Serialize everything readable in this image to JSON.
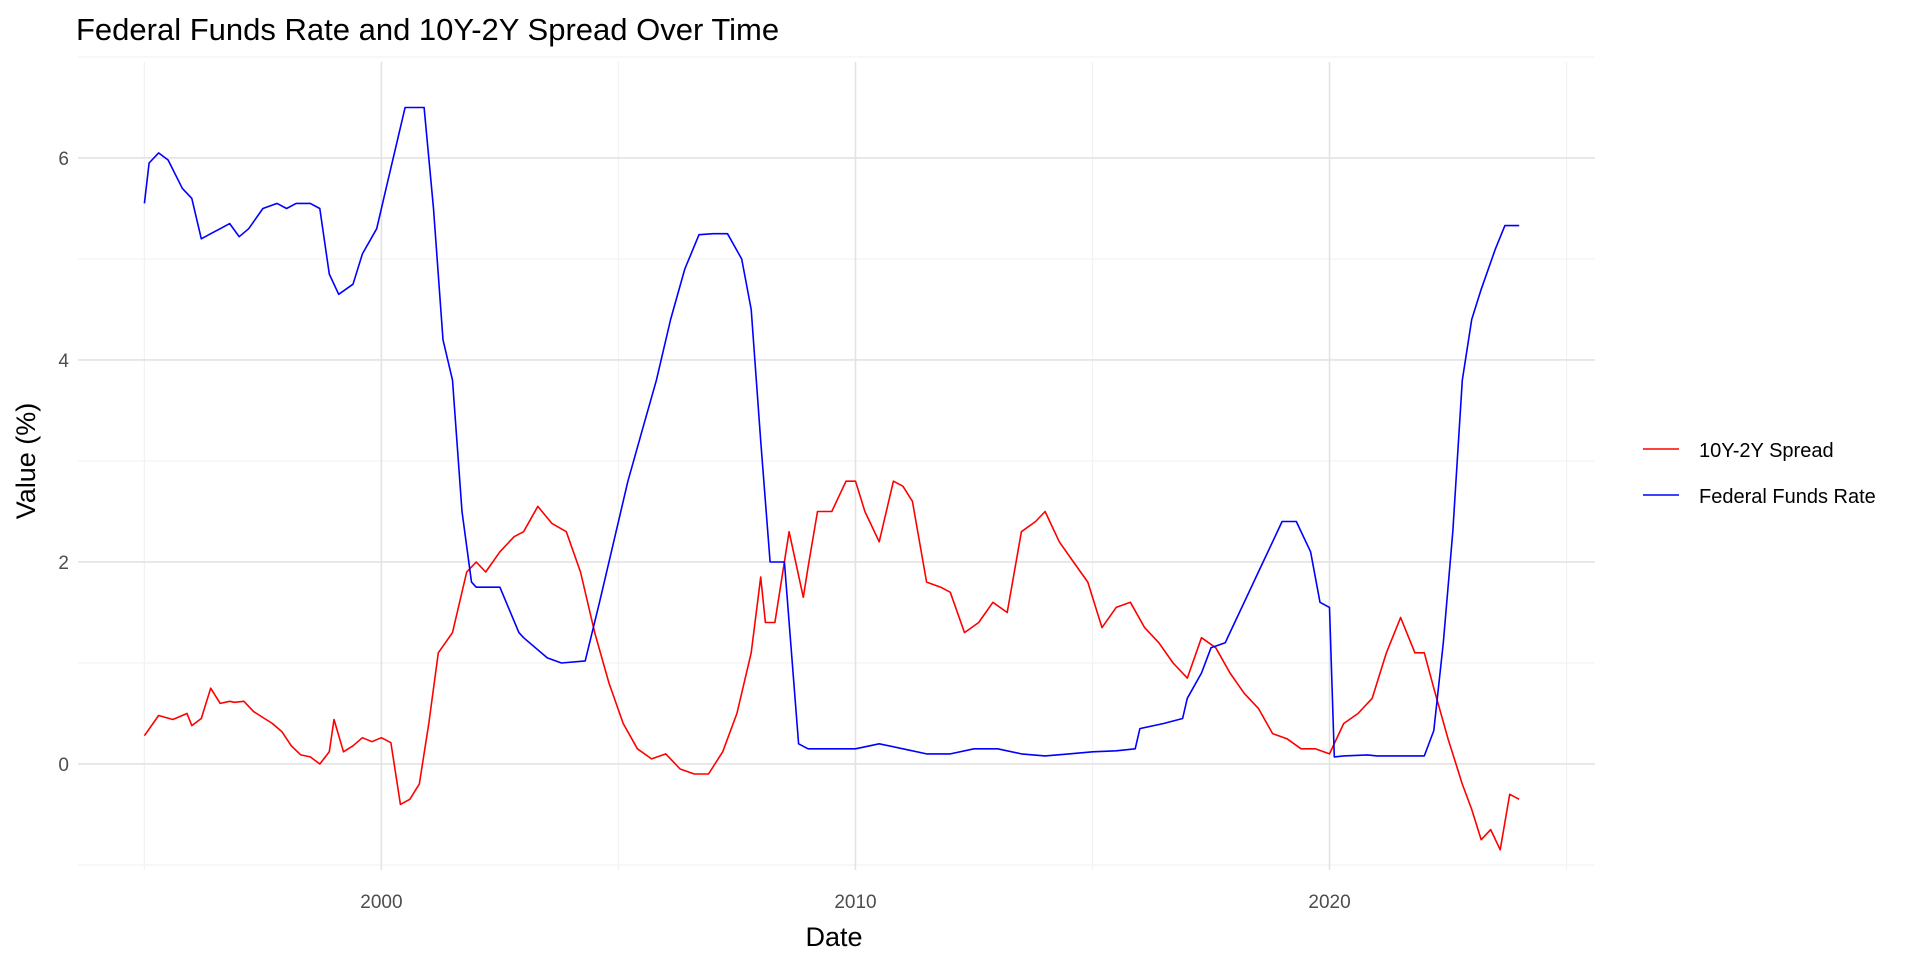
{
  "chart_data": {
    "type": "line",
    "title": "Federal Funds Rate and 10Y-2Y Spread Over Time",
    "xlabel": "Date",
    "ylabel": "Value (%)",
    "xlim": [
      1993.6,
      2025.6
    ],
    "ylim": [
      -1.05,
      6.95
    ],
    "x_ticks": [
      2000,
      2010,
      2020
    ],
    "y_ticks": [
      0,
      2,
      4,
      6
    ],
    "grid": true,
    "legend_position": "right",
    "series": [
      {
        "name": "10Y-2Y Spread",
        "color": "#FF0000",
        "x": [
          1995.0,
          1995.3,
          1995.6,
          1995.9,
          1996.0,
          1996.2,
          1996.4,
          1996.6,
          1996.8,
          1996.9,
          1997.1,
          1997.3,
          1997.5,
          1997.7,
          1997.9,
          1998.1,
          1998.3,
          1998.5,
          1998.7,
          1998.9,
          1999.0,
          1999.2,
          1999.4,
          1999.6,
          1999.8,
          2000.0,
          2000.2,
          2000.4,
          2000.6,
          2000.8,
          2001.0,
          2001.2,
          2001.5,
          2001.8,
          2002.0,
          2002.2,
          2002.5,
          2002.8,
          2003.0,
          2003.3,
          2003.6,
          2003.9,
          2004.2,
          2004.5,
          2004.8,
          2005.1,
          2005.4,
          2005.7,
          2006.0,
          2006.3,
          2006.6,
          2006.9,
          2007.2,
          2007.5,
          2007.8,
          2008.0,
          2008.1,
          2008.3,
          2008.6,
          2008.9,
          2009.0,
          2009.2,
          2009.5,
          2009.8,
          2010.0,
          2010.2,
          2010.5,
          2010.8,
          2011.0,
          2011.2,
          2011.5,
          2011.8,
          2012.0,
          2012.3,
          2012.6,
          2012.9,
          2013.2,
          2013.5,
          2013.8,
          2014.0,
          2014.3,
          2014.6,
          2014.9,
          2015.2,
          2015.5,
          2015.8,
          2016.1,
          2016.4,
          2016.7,
          2017.0,
          2017.3,
          2017.6,
          2017.9,
          2018.2,
          2018.5,
          2018.8,
          2019.1,
          2019.4,
          2019.7,
          2020.0,
          2020.3,
          2020.6,
          2020.9,
          2021.2,
          2021.5,
          2021.8,
          2022.0,
          2022.2,
          2022.5,
          2022.8,
          2023.0,
          2023.2,
          2023.4,
          2023.6,
          2023.8,
          2024.0
        ],
        "y": [
          0.28,
          0.48,
          0.44,
          0.5,
          0.38,
          0.45,
          0.75,
          0.6,
          0.62,
          0.61,
          0.62,
          0.52,
          0.46,
          0.4,
          0.32,
          0.18,
          0.09,
          0.07,
          0.0,
          0.12,
          0.44,
          0.12,
          0.18,
          0.26,
          0.22,
          0.26,
          0.21,
          -0.4,
          -0.35,
          -0.2,
          0.4,
          1.1,
          1.3,
          1.9,
          2.0,
          1.9,
          2.1,
          2.25,
          2.3,
          2.55,
          2.38,
          2.3,
          1.9,
          1.3,
          0.8,
          0.4,
          0.15,
          0.05,
          0.1,
          -0.05,
          -0.1,
          -0.1,
          0.12,
          0.5,
          1.1,
          1.85,
          1.4,
          1.4,
          2.3,
          1.65,
          1.95,
          2.5,
          2.5,
          2.8,
          2.8,
          2.5,
          2.2,
          2.8,
          2.75,
          2.6,
          1.8,
          1.75,
          1.7,
          1.3,
          1.4,
          1.6,
          1.5,
          2.3,
          2.4,
          2.5,
          2.2,
          2.0,
          1.8,
          1.35,
          1.55,
          1.6,
          1.35,
          1.2,
          1.0,
          0.85,
          1.25,
          1.15,
          0.9,
          0.7,
          0.55,
          0.3,
          0.25,
          0.15,
          0.15,
          0.1,
          0.4,
          0.5,
          0.65,
          1.1,
          1.45,
          1.1,
          1.1,
          0.75,
          0.25,
          -0.2,
          -0.45,
          -0.75,
          -0.65,
          -0.85,
          -0.3,
          -0.35
        ]
      },
      {
        "name": "Federal Funds Rate",
        "color": "#0000FF",
        "x": [
          1995.0,
          1995.1,
          1995.3,
          1995.5,
          1995.8,
          1996.0,
          1996.2,
          1996.4,
          1996.6,
          1996.8,
          1997.0,
          1997.2,
          1997.5,
          1997.8,
          1998.0,
          1998.2,
          1998.5,
          1998.7,
          1998.9,
          1999.1,
          1999.4,
          1999.6,
          1999.9,
          2000.1,
          2000.3,
          2000.5,
          2000.7,
          2000.9,
          2001.1,
          2001.3,
          2001.5,
          2001.7,
          2001.9,
          2002.0,
          2002.5,
          2002.9,
          2003.0,
          2003.5,
          2003.8,
          2004.3,
          2004.6,
          2004.9,
          2005.2,
          2005.5,
          2005.8,
          2006.1,
          2006.4,
          2006.7,
          2007.0,
          2007.3,
          2007.6,
          2007.8,
          2008.0,
          2008.2,
          2008.5,
          2008.8,
          2009.0,
          2009.5,
          2010.0,
          2010.5,
          2011.0,
          2011.5,
          2012.0,
          2012.5,
          2013.0,
          2013.5,
          2014.0,
          2014.5,
          2015.0,
          2015.5,
          2015.9,
          2016.0,
          2016.5,
          2016.9,
          2017.0,
          2017.3,
          2017.5,
          2017.8,
          2018.0,
          2018.3,
          2018.5,
          2018.8,
          2019.0,
          2019.3,
          2019.6,
          2019.8,
          2020.0,
          2020.1,
          2020.3,
          2020.8,
          2021.0,
          2021.5,
          2022.0,
          2022.2,
          2022.4,
          2022.6,
          2022.8,
          2023.0,
          2023.2,
          2023.5,
          2023.7,
          2024.0
        ],
        "y": [
          5.55,
          5.95,
          6.05,
          5.98,
          5.7,
          5.6,
          5.2,
          5.25,
          5.3,
          5.35,
          5.22,
          5.3,
          5.5,
          5.55,
          5.5,
          5.55,
          5.55,
          5.5,
          4.85,
          4.65,
          4.75,
          5.05,
          5.3,
          5.7,
          6.1,
          6.5,
          6.5,
          6.5,
          5.5,
          4.2,
          3.8,
          2.5,
          1.8,
          1.75,
          1.75,
          1.3,
          1.25,
          1.05,
          1.0,
          1.02,
          1.6,
          2.2,
          2.8,
          3.3,
          3.8,
          4.4,
          4.9,
          5.24,
          5.25,
          5.25,
          5.0,
          4.5,
          3.2,
          2.0,
          2.0,
          0.2,
          0.15,
          0.15,
          0.15,
          0.2,
          0.15,
          0.1,
          0.1,
          0.15,
          0.15,
          0.1,
          0.08,
          0.1,
          0.12,
          0.13,
          0.15,
          0.35,
          0.4,
          0.45,
          0.65,
          0.9,
          1.15,
          1.2,
          1.4,
          1.7,
          1.9,
          2.2,
          2.4,
          2.4,
          2.1,
          1.6,
          1.55,
          0.07,
          0.08,
          0.09,
          0.08,
          0.08,
          0.08,
          0.33,
          1.2,
          2.3,
          3.8,
          4.4,
          4.7,
          5.1,
          5.33,
          5.33
        ]
      }
    ]
  }
}
